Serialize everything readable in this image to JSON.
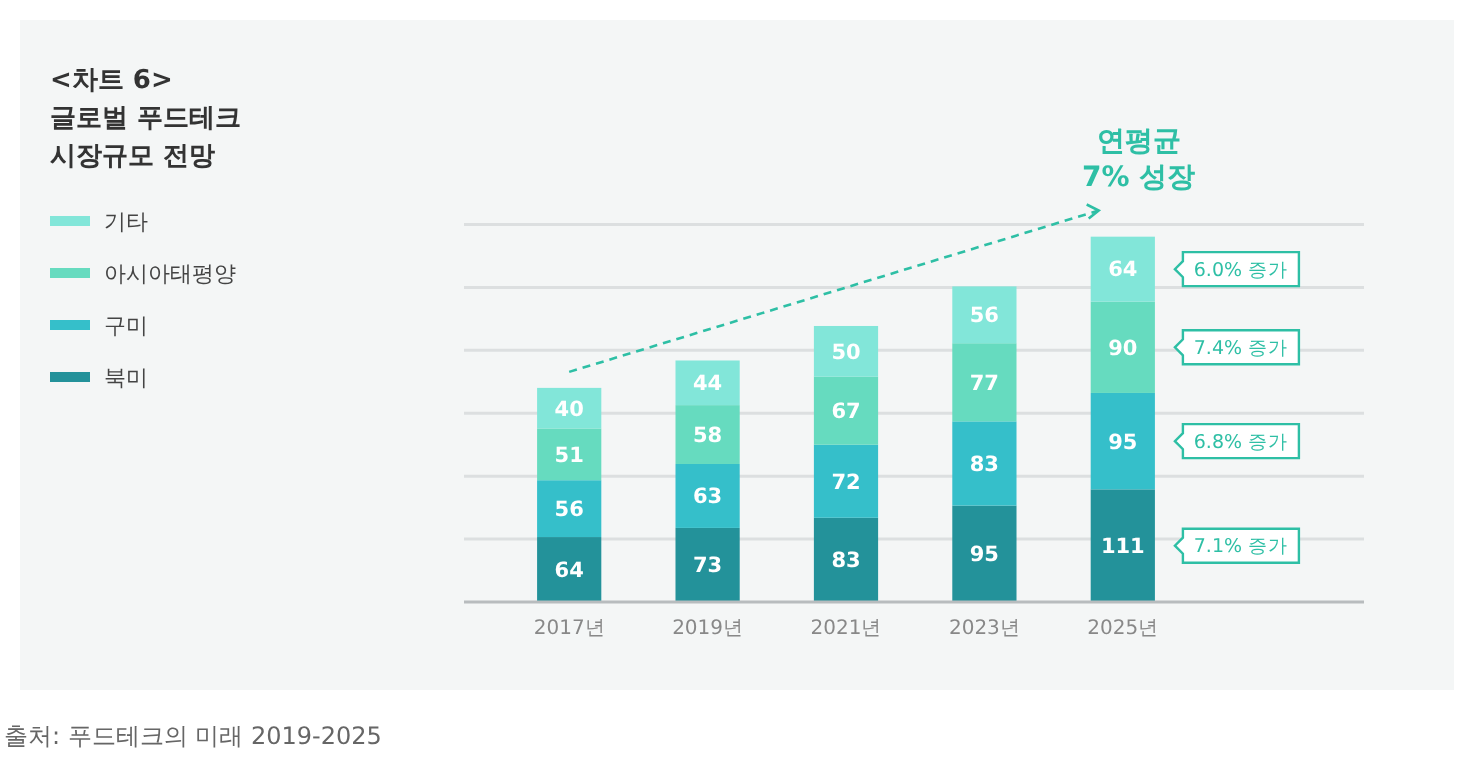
{
  "chart_data": {
    "type": "bar",
    "title": "<차트 6>\n글로벌 푸드테크\n시장규모 전망",
    "categories": [
      "2017년",
      "2019년",
      "2021년",
      "2023년",
      "2025년"
    ],
    "stacked": true,
    "series": [
      {
        "name": "북미",
        "color": "#23929a",
        "values": [
          64,
          73,
          83,
          95,
          111
        ]
      },
      {
        "name": "구미",
        "color": "#35bfca",
        "values": [
          56,
          63,
          72,
          83,
          95
        ]
      },
      {
        "name": "아시아태평양",
        "color": "#66dbbf",
        "values": [
          51,
          58,
          67,
          77,
          90
        ]
      },
      {
        "name": "기타",
        "color": "#82e6d9",
        "values": [
          40,
          44,
          50,
          56,
          64
        ]
      }
    ],
    "ylim": [
      0,
      372
    ],
    "yticks": [
      {
        "value": 62,
        "label": null
      },
      {
        "value": 124,
        "label": null
      },
      {
        "value": 186,
        "label": null
      },
      {
        "value": 248,
        "label": null
      },
      {
        "value": 310,
        "label": null
      },
      {
        "value": 372,
        "label": null
      }
    ],
    "tick_labels": "x",
    "grid": "y",
    "data_labels": true,
    "legend": "left",
    "annotations": [
      "연평균\n7% 성장",
      "6.0% 증가",
      "7.4% 증가",
      "6.8% 증가",
      "7.1% 증가",
      "출처: 푸드테크의 미래 2019-2025"
    ]
  }
}
